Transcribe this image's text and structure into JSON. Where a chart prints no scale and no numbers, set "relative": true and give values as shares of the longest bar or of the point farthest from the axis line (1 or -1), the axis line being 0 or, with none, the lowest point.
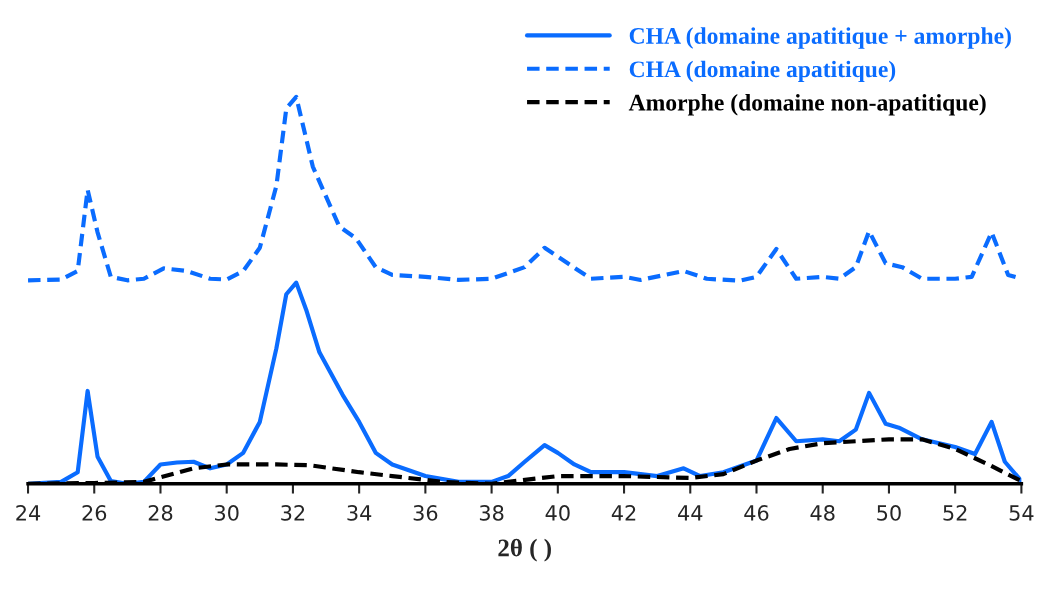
{
  "chart_data": {
    "type": "line",
    "relative": true,
    "xlabel": "2θ ( )",
    "xlim": [
      24,
      54
    ],
    "xticks": [
      24,
      26,
      28,
      30,
      32,
      34,
      36,
      38,
      40,
      42,
      44,
      46,
      48,
      50,
      52,
      54
    ],
    "grid": false,
    "legend": "top right",
    "marker": "none",
    "series": [
      {
        "name": "CHA (domaine apatitique + amorphe)",
        "color": "#0a6cff",
        "line_style": "solid",
        "x": [
          24,
          25,
          25.5,
          25.8,
          26.1,
          26.5,
          27,
          27.5,
          28,
          28.5,
          29,
          29.5,
          30,
          30.5,
          31,
          31.5,
          31.8,
          32.1,
          32.4,
          32.8,
          33.5,
          34,
          34.5,
          35,
          36,
          37,
          38,
          38.5,
          39,
          39.6,
          40,
          40.5,
          41,
          42,
          43,
          43.8,
          44.3,
          45,
          46,
          46.6,
          47.2,
          48,
          48.5,
          49,
          49.4,
          49.9,
          50.3,
          51,
          52,
          52.6,
          53.1,
          53.5,
          54
        ],
        "values": [
          0,
          0.005,
          0.03,
          0.24,
          0.07,
          0.007,
          0,
          0.005,
          0.05,
          0.055,
          0.057,
          0.04,
          0.05,
          0.08,
          0.16,
          0.35,
          0.49,
          0.52,
          0.45,
          0.34,
          0.23,
          0.16,
          0.08,
          0.05,
          0.02,
          0.005,
          0.005,
          0.02,
          0.057,
          0.1,
          0.08,
          0.05,
          0.03,
          0.03,
          0.02,
          0.04,
          0.02,
          0.03,
          0.06,
          0.17,
          0.11,
          0.115,
          0.11,
          0.14,
          0.235,
          0.155,
          0.145,
          0.115,
          0.095,
          0.077,
          0.16,
          0.057,
          0.007
        ]
      },
      {
        "name": "CHA (domaine apatitique)",
        "color": "#0a6cff",
        "line_style": "dashed",
        "x": [
          24,
          25,
          25.5,
          25.8,
          26.1,
          26.5,
          27,
          27.5,
          28.1,
          28.8,
          29.5,
          30,
          30.5,
          31,
          31.5,
          31.8,
          32.1,
          32.6,
          33.4,
          33.9,
          34.5,
          35,
          36,
          37,
          38,
          39,
          39.6,
          40.3,
          41,
          42,
          42.5,
          43.8,
          44.5,
          45.5,
          46,
          46.6,
          47.2,
          48,
          48.5,
          49,
          49.4,
          49.9,
          50.4,
          51,
          52,
          52.5,
          53.1,
          53.6,
          54
        ],
        "values": [
          0.526,
          0.528,
          0.55,
          0.76,
          0.65,
          0.535,
          0.526,
          0.53,
          0.557,
          0.55,
          0.53,
          0.528,
          0.55,
          0.61,
          0.77,
          0.97,
          1,
          0.82,
          0.665,
          0.635,
          0.56,
          0.54,
          0.535,
          0.527,
          0.53,
          0.56,
          0.61,
          0.57,
          0.53,
          0.535,
          0.527,
          0.55,
          0.53,
          0.525,
          0.535,
          0.607,
          0.53,
          0.535,
          0.53,
          0.56,
          0.653,
          0.57,
          0.56,
          0.53,
          0.53,
          0.535,
          0.65,
          0.54,
          0.53
        ]
      },
      {
        "name": "Amorphe (domaine non-apatitique)",
        "color": "#000000",
        "line_style": "dashed",
        "x": [
          24,
          26,
          27.5,
          29,
          30,
          31,
          31.5,
          32.5,
          34,
          35,
          36.5,
          38,
          40,
          42,
          44,
          45,
          46,
          47,
          48,
          49,
          50,
          51,
          52,
          53,
          54
        ],
        "values": [
          0,
          0.002,
          0.005,
          0.04,
          0.05,
          0.05,
          0.05,
          0.048,
          0.03,
          0.02,
          0.005,
          0,
          0.02,
          0.02,
          0.015,
          0.025,
          0.06,
          0.09,
          0.105,
          0.11,
          0.115,
          0.115,
          0.09,
          0.05,
          0.007
        ]
      }
    ]
  }
}
